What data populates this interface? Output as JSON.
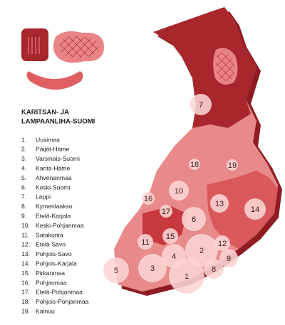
{
  "title_lines": [
    "KARITSAN- JA",
    "LAMPAANLIHA-SUOMI"
  ],
  "items": [
    {
      "rank": "1.",
      "name": "Uusimaa"
    },
    {
      "rank": "2.",
      "name": "Päijät-Häme"
    },
    {
      "rank": "3.",
      "name": "Varsinais-Suomi"
    },
    {
      "rank": "4.",
      "name": "Kanta-Häme"
    },
    {
      "rank": "5.",
      "name": "Ahvenanmaa"
    },
    {
      "rank": "6.",
      "name": "Keski-Suomi"
    },
    {
      "rank": "7.",
      "name": "Lappi"
    },
    {
      "rank": "8.",
      "name": "Kymenlaakso"
    },
    {
      "rank": "9.",
      "name": "Etelä-Karjala"
    },
    {
      "rank": "10.",
      "name": "Keski-Pohjanmaa"
    },
    {
      "rank": "11.",
      "name": "Satakunta"
    },
    {
      "rank": "12.",
      "name": "Etelä-Savo"
    },
    {
      "rank": "13.",
      "name": "Pohjois-Savo"
    },
    {
      "rank": "14.",
      "name": "Pohjois-Karjala"
    },
    {
      "rank": "15.",
      "name": "Pirkanmaa"
    },
    {
      "rank": "16.",
      "name": "Pohjanmaa"
    },
    {
      "rank": "17.",
      "name": "Etelä-Pohjanmaa"
    },
    {
      "rank": "18.",
      "name": "Pohjois-Pohjanmaa"
    },
    {
      "rank": "19.",
      "name": "Kainuu"
    }
  ],
  "bubbles": [
    "1",
    "2",
    "3",
    "4",
    "5",
    "6",
    "7",
    "8",
    "9",
    "10",
    "11",
    "12",
    "13",
    "14",
    "15",
    "16",
    "17",
    "18",
    "19"
  ]
}
